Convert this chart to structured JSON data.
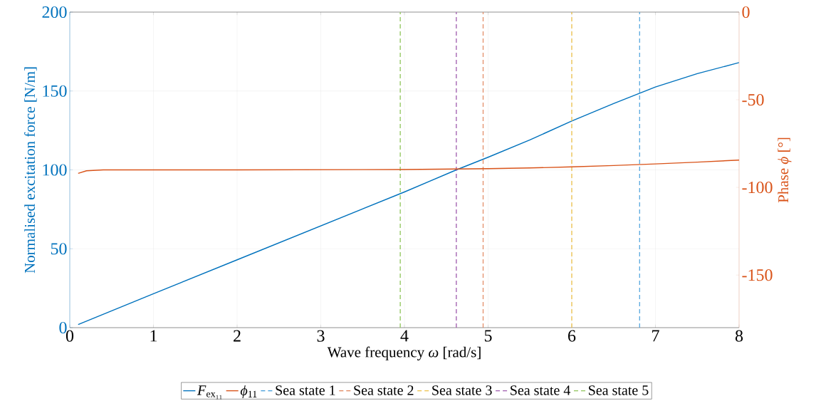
{
  "chart_data": {
    "type": "line",
    "xlabel": "Wave frequency *ω* [rad/s]",
    "ylabel": "Normalised excitation force [N/m]",
    "y2label": "Phase *ϕ* [°]",
    "xlim": [
      0,
      8
    ],
    "xticks": [
      0,
      1,
      2,
      3,
      4,
      5,
      6,
      7,
      8
    ],
    "ylim": [
      0,
      200
    ],
    "yticks": [
      0,
      50,
      100,
      150,
      200
    ],
    "y2lim": [
      -180,
      0
    ],
    "y2ticks": [
      -150,
      -100,
      -50,
      0
    ],
    "grid": true,
    "legend": "bottom",
    "marker": "none",
    "line_style": "solid",
    "series": [
      {
        "name": "*F*$_{ex₁₁}$",
        "color": "#0072bd",
        "x": [
          0.1,
          1,
          2,
          3,
          4,
          4.62,
          5,
          5.5,
          6,
          6.5,
          7,
          7.5,
          8
        ],
        "values": [
          2,
          21.5,
          43,
          64.5,
          86,
          100,
          108,
          119,
          131,
          142,
          152.5,
          161,
          168
        ]
      },
      {
        "name": "*ϕ*$_{11}$",
        "color": "#d95319",
        "axis": "y2",
        "x": [
          0.1,
          0.2,
          0.4,
          2,
          4,
          5,
          5.5,
          6,
          6.5,
          7,
          7.5,
          8
        ],
        "values": [
          -92,
          -90.5,
          -90,
          -90,
          -89.8,
          -89.3,
          -88.9,
          -88.3,
          -87.5,
          -86.6,
          -85.6,
          -84.4
        ]
      }
    ],
    "ref_lines": [
      {
        "axis": "x",
        "value": 6.81,
        "label": "Sea state 1",
        "color": "#3d9ad9",
        "line_style": "dashed"
      },
      {
        "axis": "x",
        "value": 4.94,
        "label": "Sea state 2",
        "color": "#e0835a",
        "line_style": "dashed"
      },
      {
        "axis": "x",
        "value": 6.0,
        "label": "Sea state 3",
        "color": "#edc14a",
        "line_style": "dashed"
      },
      {
        "axis": "x",
        "value": 4.62,
        "label": "Sea state 4",
        "color": "#9e5aad",
        "line_style": "dashed"
      },
      {
        "axis": "x",
        "value": 3.95,
        "label": "Sea state 5",
        "color": "#8fc45a",
        "line_style": "dashed"
      }
    ]
  }
}
